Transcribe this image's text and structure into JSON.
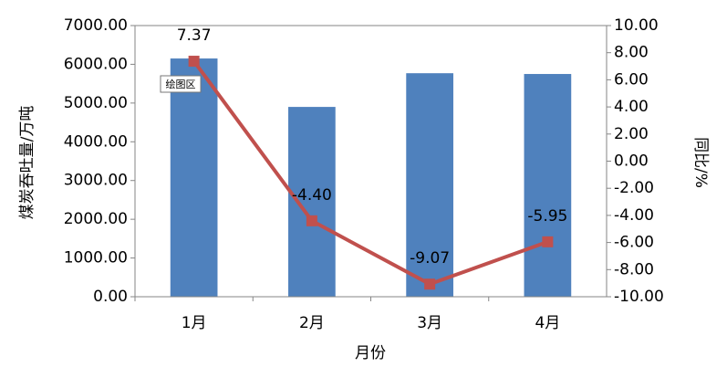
{
  "chart_data": {
    "type": "combo",
    "categories": [
      "1月",
      "2月",
      "3月",
      "4月"
    ],
    "series": [
      {
        "type": "bar",
        "color": "#4f81bd",
        "values": [
          6150,
          4900,
          5770,
          5750
        ]
      },
      {
        "type": "line",
        "axis": "y2",
        "color": "#c0504d",
        "values": [
          7.37,
          -4.4,
          -9.07,
          -5.95
        ],
        "value_labels": [
          "7.37",
          "-4.40",
          "-9.07",
          "-5.95"
        ]
      }
    ],
    "ylim": [
      0,
      7000
    ],
    "yticks": [
      {
        "value": 0,
        "label": "0.00"
      },
      {
        "value": 1000,
        "label": "1000.00"
      },
      {
        "value": 2000,
        "label": "2000.00"
      },
      {
        "value": 3000,
        "label": "3000.00"
      },
      {
        "value": 4000,
        "label": "4000.00"
      },
      {
        "value": 5000,
        "label": "5000.00"
      },
      {
        "value": 6000,
        "label": "6000.00"
      },
      {
        "value": 7000,
        "label": "7000.00"
      }
    ],
    "y2lim": [
      -10,
      10
    ],
    "y2ticks": [
      {
        "value": -10,
        "label": "-10.00"
      },
      {
        "value": -8,
        "label": "-8.00"
      },
      {
        "value": -6,
        "label": "-6.00"
      },
      {
        "value": -4,
        "label": "-4.00"
      },
      {
        "value": -2,
        "label": "-2.00"
      },
      {
        "value": 0,
        "label": "0.00"
      },
      {
        "value": 2,
        "label": "2.00"
      },
      {
        "value": 4,
        "label": "4.00"
      },
      {
        "value": 6,
        "label": "6.00"
      },
      {
        "value": 8,
        "label": "8.00"
      },
      {
        "value": 10,
        "label": "10.00"
      }
    ],
    "ylabel": "煤炭吞吐量/万吨",
    "y2label": "同比/%",
    "xlabel": "月份",
    "annotation": "绘图区"
  }
}
